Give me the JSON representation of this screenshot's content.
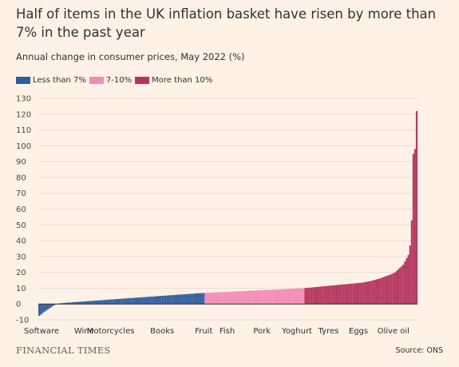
{
  "header": {
    "title": "Half of items in the UK inflation basket have risen by more than 7% in the past year",
    "subtitle": "Annual change in consumer prices, May 2022 (%)"
  },
  "footer": {
    "brand": "FINANCIAL TIMES",
    "source": "Source: ONS"
  },
  "colors": {
    "background": "#fff1e5",
    "gridline": "#e6d9ce",
    "axis": "#33302e",
    "low": "#2e5e9e",
    "mid": "#f38bb7",
    "high": "#b5345f"
  },
  "chart_data": {
    "type": "bar",
    "title": "Half of items in the UK inflation basket have risen by more than 7% in the past year",
    "subtitle": "Annual change in consumer prices, May 2022 (%)",
    "ylim": [
      -10,
      130
    ],
    "yticks": [
      -10,
      0,
      10,
      20,
      30,
      40,
      50,
      60,
      70,
      80,
      90,
      100,
      110,
      120,
      130
    ],
    "grid": true,
    "legend_placement": "top-left",
    "legend": [
      {
        "label": "Less than 7%",
        "color": "#2e5e9e"
      },
      {
        "label": "7-10%",
        "color": "#f38bb7"
      },
      {
        "label": "More than 10%",
        "color": "#b5345f"
      }
    ],
    "category_labels": [
      {
        "label": "Software",
        "index": 0
      },
      {
        "label": "Wine",
        "index": 27
      },
      {
        "label": "Motorcycles",
        "index": 43
      },
      {
        "label": "Books",
        "index": 74
      },
      {
        "label": "Fruit",
        "index": 99
      },
      {
        "label": "Fish",
        "index": 113
      },
      {
        "label": "Pork",
        "index": 134
      },
      {
        "label": "Yoghurt",
        "index": 155
      },
      {
        "label": "Tyres",
        "index": 174
      },
      {
        "label": "Eggs",
        "index": 192
      },
      {
        "label": "Olive oil",
        "index": 213
      }
    ],
    "series": [
      {
        "name": "Less than 7%",
        "start_index": 0,
        "values": [
          -7.5,
          -6.8,
          -5.9,
          -5.0,
          -4.3,
          -3.6,
          -2.9,
          -2.2,
          -1.5,
          -0.8,
          -0.2,
          0.2,
          0.4,
          0.5,
          0.6,
          0.7,
          0.8,
          0.9,
          1.0,
          1.0,
          1.1,
          1.2,
          1.3,
          1.3,
          1.4,
          1.5,
          1.6,
          1.6,
          1.7,
          1.8,
          1.9,
          2.0,
          2.0,
          2.1,
          2.2,
          2.3,
          2.3,
          2.4,
          2.5,
          2.6,
          2.6,
          2.7,
          2.8,
          2.9,
          2.9,
          3.0,
          3.1,
          3.2,
          3.2,
          3.3,
          3.4,
          3.5,
          3.5,
          3.6,
          3.7,
          3.8,
          3.8,
          3.9,
          4.0,
          4.1,
          4.1,
          4.2,
          4.3,
          4.4,
          4.4,
          4.5,
          4.6,
          4.7,
          4.7,
          4.8,
          4.9,
          5.0,
          5.0,
          5.1,
          5.2,
          5.3,
          5.3,
          5.4,
          5.5,
          5.6,
          5.6,
          5.7,
          5.8,
          5.9,
          5.9,
          6.0,
          6.1,
          6.2,
          6.2,
          6.3,
          6.4,
          6.5,
          6.5,
          6.6,
          6.7,
          6.8,
          6.8,
          6.9,
          6.9,
          7.0
        ]
      },
      {
        "name": "7-10%",
        "start_index": 100,
        "values": [
          7.0,
          7.1,
          7.1,
          7.2,
          7.2,
          7.3,
          7.3,
          7.4,
          7.4,
          7.5,
          7.5,
          7.6,
          7.6,
          7.7,
          7.7,
          7.8,
          7.8,
          7.9,
          7.9,
          8.0,
          8.0,
          8.1,
          8.1,
          8.2,
          8.2,
          8.3,
          8.3,
          8.4,
          8.4,
          8.5,
          8.5,
          8.6,
          8.6,
          8.7,
          8.7,
          8.8,
          8.8,
          8.9,
          8.9,
          9.0,
          9.0,
          9.1,
          9.1,
          9.2,
          9.2,
          9.3,
          9.3,
          9.4,
          9.4,
          9.5,
          9.5,
          9.6,
          9.6,
          9.7,
          9.7,
          9.8,
          9.8,
          9.9,
          9.9,
          10.0
        ]
      },
      {
        "name": "More than 10%",
        "start_index": 160,
        "values": [
          10.1,
          10.2,
          10.3,
          10.4,
          10.5,
          10.6,
          10.7,
          10.8,
          10.9,
          11.0,
          11.1,
          11.2,
          11.3,
          11.4,
          11.5,
          11.6,
          11.7,
          11.8,
          11.9,
          12.0,
          12.1,
          12.2,
          12.3,
          12.4,
          12.5,
          12.6,
          12.7,
          12.8,
          12.9,
          13.0,
          13.1,
          13.2,
          13.3,
          13.4,
          13.5,
          13.7,
          13.9,
          14.1,
          14.3,
          14.5,
          14.8,
          15.0,
          15.3,
          15.6,
          15.9,
          16.2,
          16.6,
          17.0,
          17.4,
          17.8,
          18.2,
          18.6,
          19.0,
          19.5,
          20.0,
          21,
          22,
          23,
          24,
          25,
          27,
          29,
          31,
          37,
          53,
          95,
          98,
          122
        ]
      }
    ]
  }
}
